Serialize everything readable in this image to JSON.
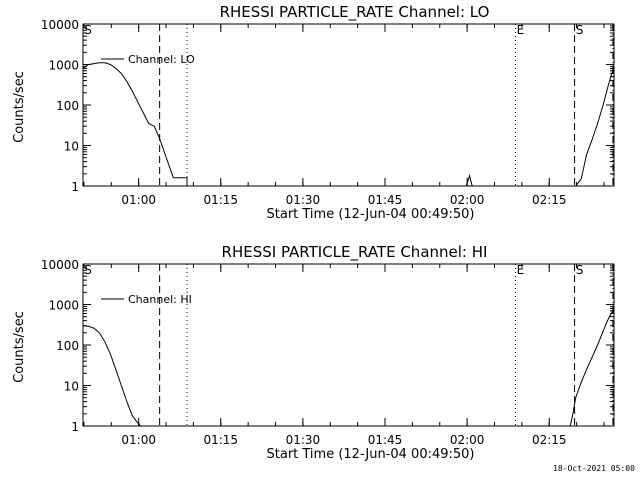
{
  "timestamp": "18-Oct-2021 05:00",
  "chart_data": [
    {
      "type": "line",
      "title": "RHESSI PARTICLE_RATE Channel: LO",
      "xlabel": "Start Time (12-Jun-04 00:49:50)",
      "ylabel": "Counts/sec",
      "yscale": "log",
      "ylim": [
        1,
        10000
      ],
      "xlim_minutes_after_start": [
        0,
        97
      ],
      "x_tick_labels": [
        "01:00",
        "01:15",
        "01:30",
        "01:45",
        "02:00",
        "02:15"
      ],
      "x_tick_minutes_after_start": [
        10.17,
        25.17,
        40.17,
        55.17,
        70.17,
        85.17
      ],
      "y_tick_labels": [
        "1",
        "10",
        "100",
        "1000",
        "10000"
      ],
      "legend": {
        "label": "Channel: LO",
        "position": "top-left"
      },
      "markers": [
        {
          "label": "S",
          "minute": 0.0,
          "style": "dashed"
        },
        {
          "label": "",
          "minute": 14.0,
          "style": "dashed"
        },
        {
          "label": "",
          "minute": 19.0,
          "style": "dotted"
        },
        {
          "label": "E",
          "minute": 79.0,
          "style": "dotted"
        },
        {
          "label": "S",
          "minute": 89.8,
          "style": "dashed"
        },
        {
          "label": "",
          "minute": 96.8,
          "style": "dashdot"
        }
      ],
      "series": [
        {
          "segments": [
            [
              [
                0,
                800
              ],
              [
                1,
                1000
              ],
              [
                2,
                1050
              ],
              [
                3,
                1100
              ],
              [
                4,
                1100
              ],
              [
                5,
                1000
              ],
              [
                6,
                800
              ],
              [
                7,
                600
              ],
              [
                8,
                380
              ],
              [
                9,
                220
              ],
              [
                10,
                120
              ],
              [
                11,
                65
              ],
              [
                12,
                35
              ],
              [
                13,
                30
              ],
              [
                14,
                15
              ],
              [
                15,
                6
              ],
              [
                16,
                2.5
              ],
              [
                16.5,
                1.6
              ],
              [
                19,
                1.6
              ],
              [
                19,
                1
              ]
            ],
            [
              [
                70,
                1
              ],
              [
                70.6,
                1.8
              ],
              [
                71.1,
                1
              ]
            ],
            [
              [
                90,
                1
              ],
              [
                91,
                1.5
              ],
              [
                91.5,
                3
              ],
              [
                92,
                6
              ],
              [
                93,
                14
              ],
              [
                94,
                35
              ],
              [
                95,
                100
              ],
              [
                96,
                320
              ],
              [
                97,
                900
              ],
              [
                98,
                1800
              ],
              [
                99,
                3000
              ],
              [
                100,
                3700
              ],
              [
                100.7,
                3800
              ]
            ]
          ]
        }
      ]
    },
    {
      "type": "line",
      "title": "RHESSI PARTICLE_RATE Channel: HI",
      "xlabel": "Start Time (12-Jun-04 00:49:50)",
      "ylabel": "Counts/sec",
      "yscale": "log",
      "ylim": [
        1,
        10000
      ],
      "xlim_minutes_after_start": [
        0,
        97
      ],
      "x_tick_labels": [
        "01:00",
        "01:15",
        "01:30",
        "01:45",
        "02:00",
        "02:15"
      ],
      "x_tick_minutes_after_start": [
        10.17,
        25.17,
        40.17,
        55.17,
        70.17,
        85.17
      ],
      "y_tick_labels": [
        "1",
        "10",
        "100",
        "1000",
        "10000"
      ],
      "legend": {
        "label": "Channel: HI",
        "position": "top-left"
      },
      "markers": [
        {
          "label": "S",
          "minute": 0.0,
          "style": "dashed"
        },
        {
          "label": "",
          "minute": 14.0,
          "style": "dashed"
        },
        {
          "label": "",
          "minute": 19.0,
          "style": "dotted"
        },
        {
          "label": "E",
          "minute": 79.0,
          "style": "dotted"
        },
        {
          "label": "S",
          "minute": 89.8,
          "style": "dashed"
        },
        {
          "label": "",
          "minute": 96.8,
          "style": "dashdot"
        }
      ],
      "series": [
        {
          "segments": [
            [
              [
                0,
                300
              ],
              [
                1,
                290
              ],
              [
                2,
                260
              ],
              [
                3,
                200
              ],
              [
                4,
                120
              ],
              [
                5,
                60
              ],
              [
                6,
                25
              ],
              [
                7,
                10
              ],
              [
                8,
                4
              ],
              [
                9,
                1.8
              ],
              [
                10,
                1.2
              ],
              [
                10.5,
                1
              ]
            ],
            [
              [
                89,
                1
              ],
              [
                89.5,
                2
              ],
              [
                90,
                5
              ],
              [
                91,
                12
              ],
              [
                92,
                25
              ],
              [
                93,
                50
              ],
              [
                94,
                100
              ],
              [
                95,
                220
              ],
              [
                96,
                450
              ],
              [
                97,
                800
              ],
              [
                98,
                950
              ],
              [
                98.6,
                1000
              ]
            ]
          ]
        }
      ]
    }
  ]
}
